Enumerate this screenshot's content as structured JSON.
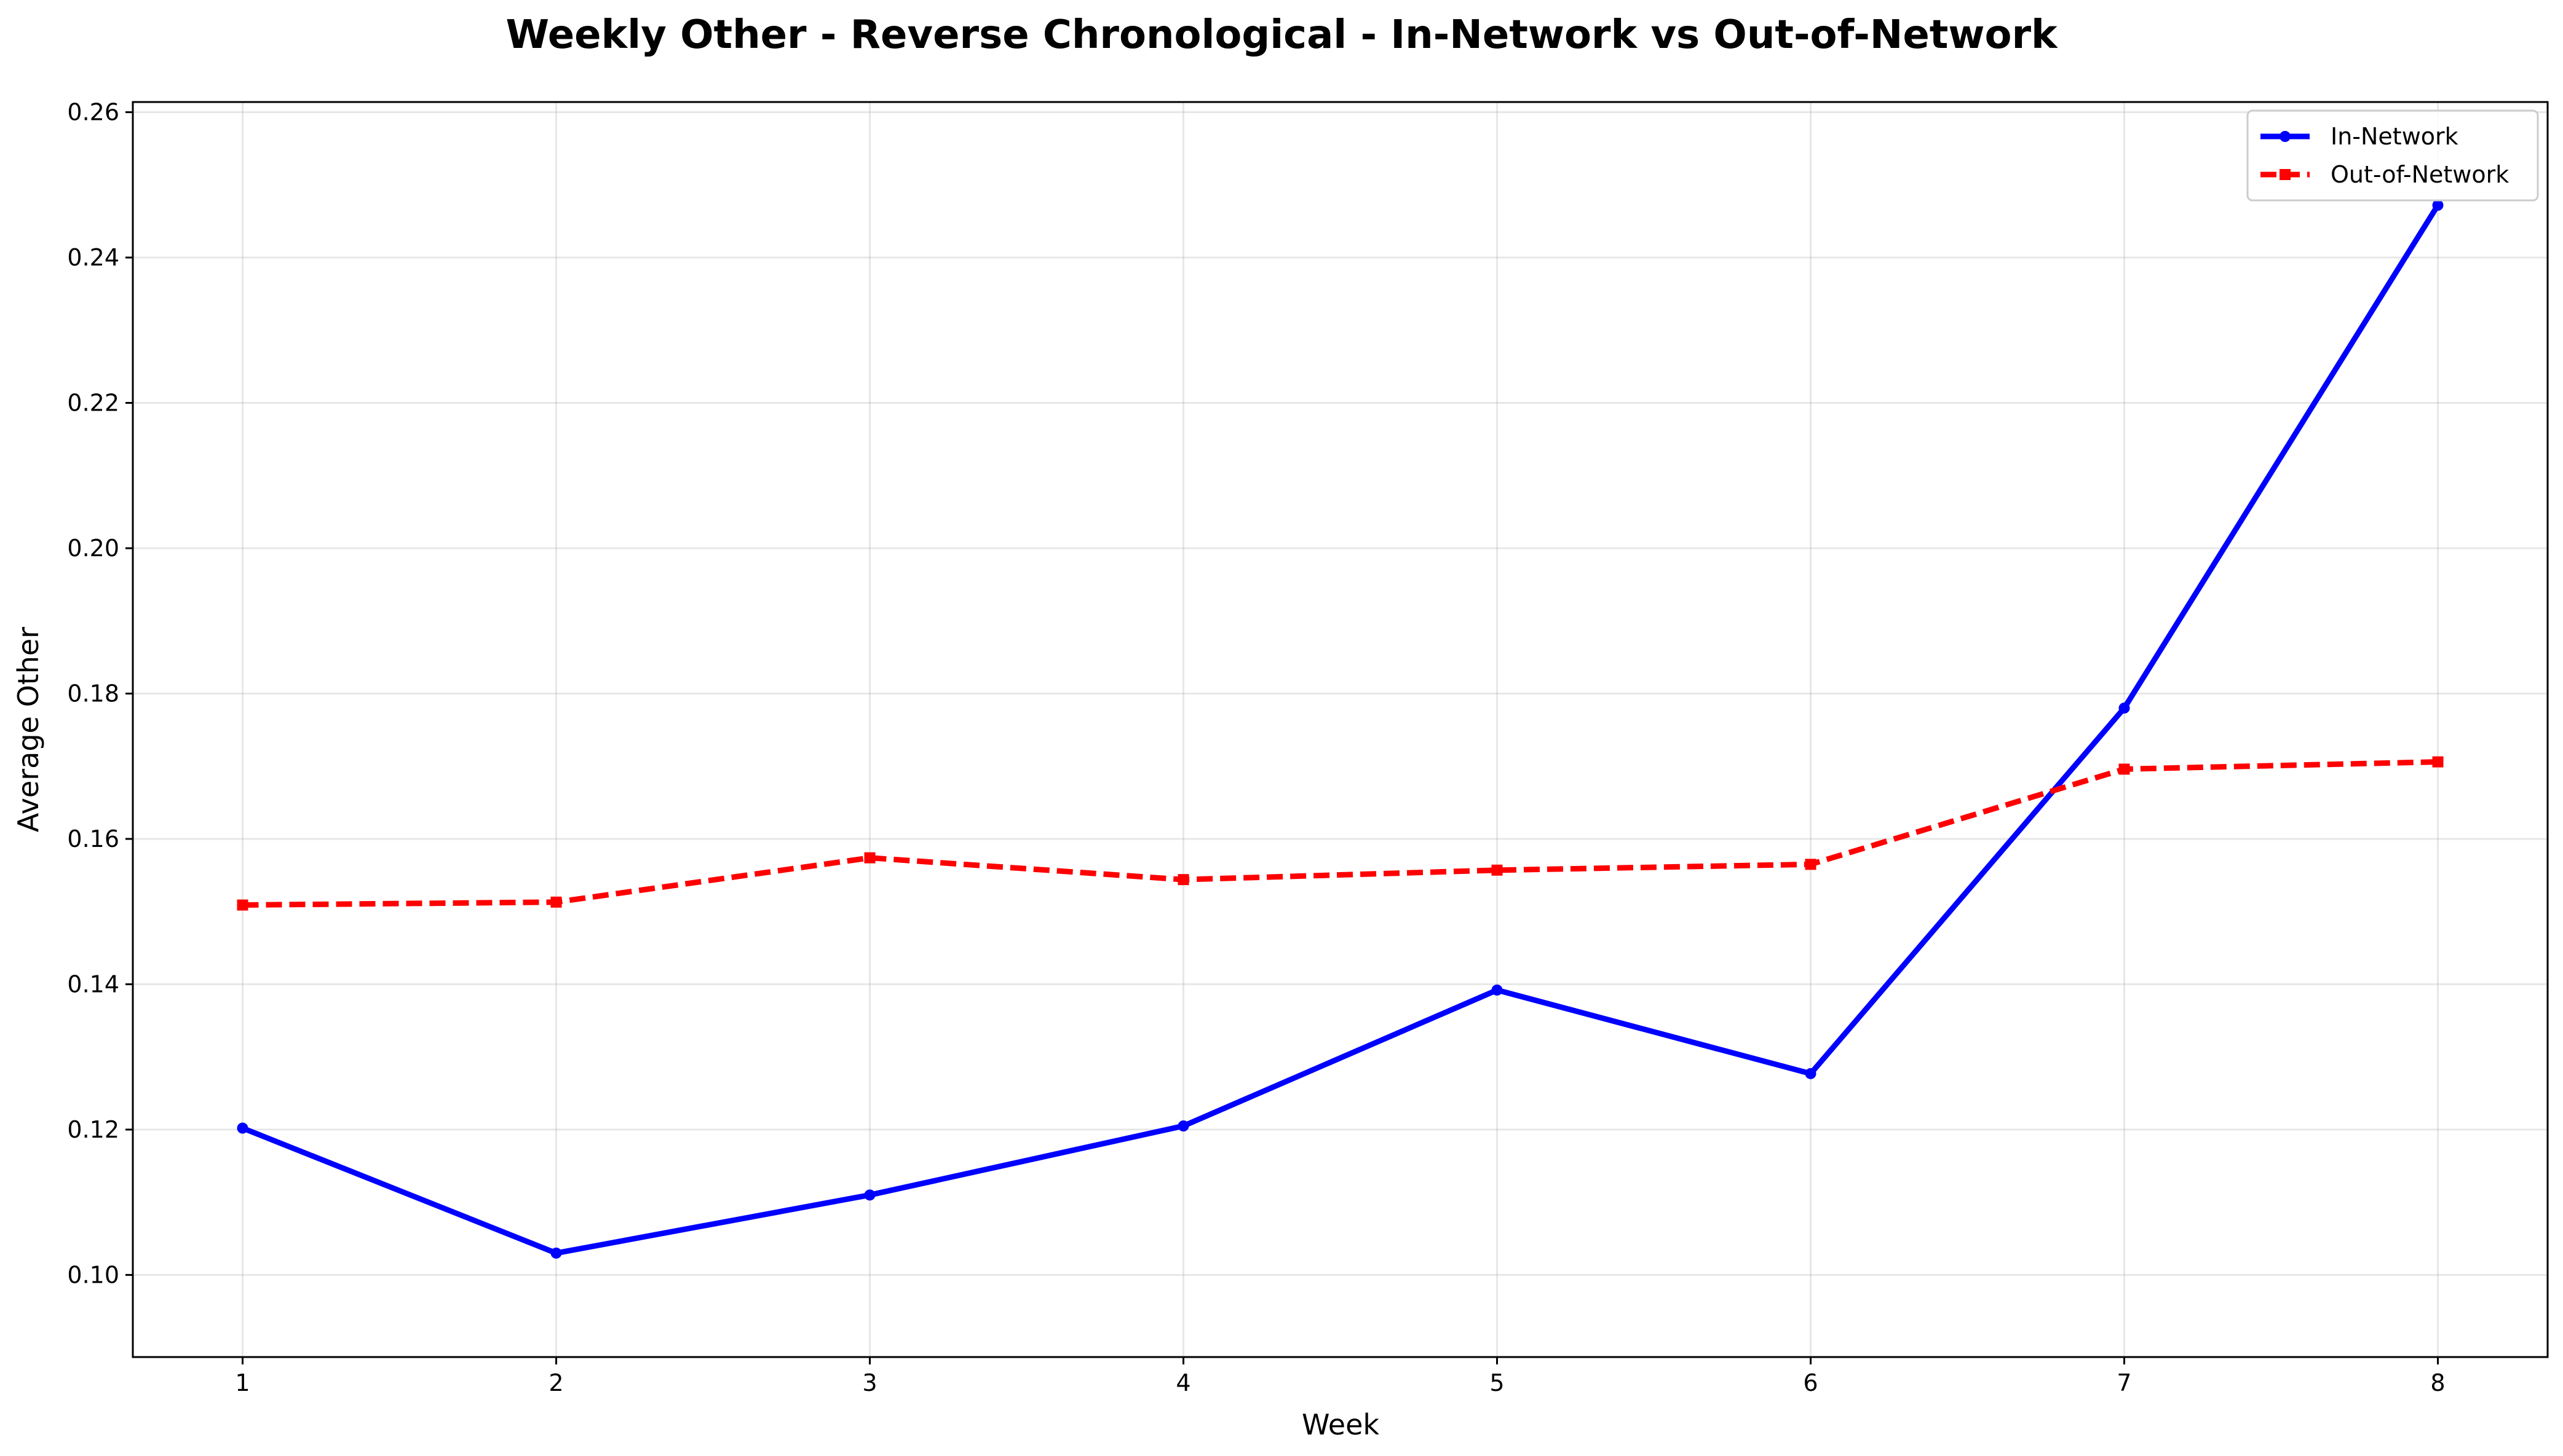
{
  "chart_data": {
    "type": "line",
    "title": "Weekly Other - Reverse Chronological - In-Network vs Out-of-Network",
    "xlabel": "Week",
    "ylabel": "Average Other",
    "x": [
      1,
      2,
      3,
      4,
      5,
      6,
      7,
      8
    ],
    "xlim": [
      0.65,
      8.35
    ],
    "ylim": [
      0.0887,
      0.2614
    ],
    "xticks": [
      1,
      2,
      3,
      4,
      5,
      6,
      7,
      8
    ],
    "xtick_labels": [
      "1",
      "2",
      "3",
      "4",
      "5",
      "6",
      "7",
      "8"
    ],
    "yticks": [
      0.1,
      0.12,
      0.14,
      0.16,
      0.18,
      0.2,
      0.22,
      0.24,
      0.26
    ],
    "ytick_labels": [
      "0.10",
      "0.12",
      "0.14",
      "0.16",
      "0.18",
      "0.20",
      "0.22",
      "0.24",
      "0.26"
    ],
    "grid": true,
    "legend_position": "top-right",
    "series": [
      {
        "name": "In-Network",
        "values": [
          0.1202,
          0.103,
          0.111,
          0.1205,
          0.1392,
          0.1277,
          0.178,
          0.2472
        ],
        "color": "#0000ff",
        "line_style": "solid",
        "marker": "circle"
      },
      {
        "name": "Out-of-Network",
        "values": [
          0.1509,
          0.1513,
          0.1574,
          0.1544,
          0.1557,
          0.1565,
          0.1696,
          0.1706
        ],
        "color": "#ff0000",
        "line_style": "dashed",
        "marker": "square"
      }
    ]
  }
}
